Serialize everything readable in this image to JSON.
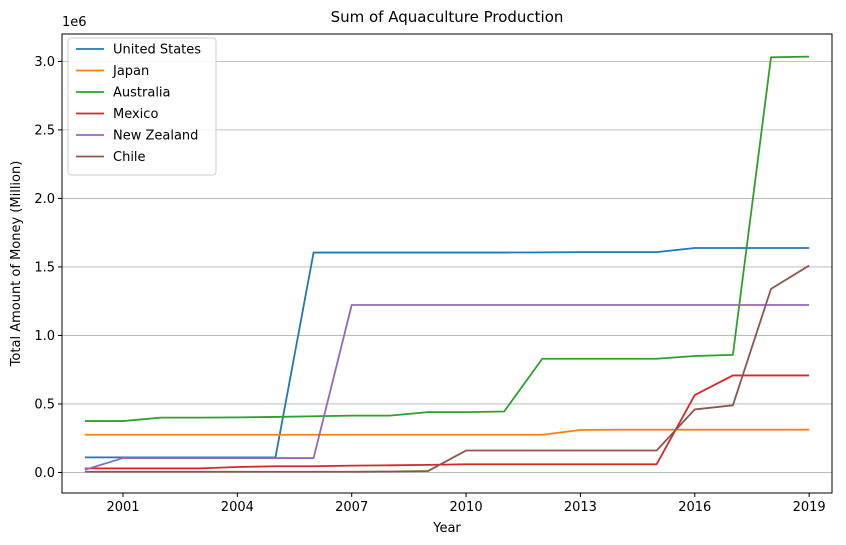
{
  "chart_data": {
    "type": "line",
    "title": "Sum of Aquaculture Production",
    "xlabel": "Year",
    "ylabel": "Total Amount of Money (Million)",
    "y_offset_label": "1e6",
    "xlim": [
      1999.4,
      2019.6
    ],
    "ylim": [
      -0.15,
      3.2
    ],
    "x_ticks": [
      2001,
      2004,
      2007,
      2010,
      2013,
      2016,
      2019
    ],
    "y_ticks": [
      0.0,
      0.5,
      1.0,
      1.5,
      2.0,
      2.5,
      3.0
    ],
    "y_tick_labels": [
      "0.0",
      "0.5",
      "1.0",
      "1.5",
      "2.0",
      "2.5",
      "3.0"
    ],
    "grid": "y-axis",
    "legend_position": "top-left",
    "x": [
      2000,
      2001,
      2002,
      2003,
      2004,
      2005,
      2006,
      2007,
      2008,
      2009,
      2010,
      2011,
      2012,
      2013,
      2014,
      2015,
      2016,
      2017,
      2018,
      2019
    ],
    "series": [
      {
        "name": "United States",
        "color": "#1f77b4",
        "values": [
          0.11,
          0.11,
          0.11,
          0.11,
          0.11,
          0.11,
          1.605,
          1.605,
          1.605,
          1.605,
          1.605,
          1.605,
          1.606,
          1.608,
          1.608,
          1.608,
          1.638,
          1.638,
          1.638,
          1.638
        ]
      },
      {
        "name": "Japan",
        "color": "#ff7f0e",
        "values": [
          0.275,
          0.275,
          0.275,
          0.275,
          0.275,
          0.275,
          0.275,
          0.275,
          0.275,
          0.275,
          0.275,
          0.275,
          0.275,
          0.31,
          0.312,
          0.312,
          0.312,
          0.312,
          0.312,
          0.312
        ]
      },
      {
        "name": "Australia",
        "color": "#2ca02c",
        "values": [
          0.375,
          0.375,
          0.4,
          0.4,
          0.402,
          0.405,
          0.41,
          0.415,
          0.415,
          0.44,
          0.44,
          0.445,
          0.83,
          0.83,
          0.83,
          0.83,
          0.85,
          0.858,
          3.03,
          3.035
        ]
      },
      {
        "name": "Mexico",
        "color": "#d62728",
        "values": [
          0.03,
          0.03,
          0.03,
          0.03,
          0.04,
          0.045,
          0.045,
          0.05,
          0.052,
          0.055,
          0.06,
          0.06,
          0.06,
          0.06,
          0.06,
          0.06,
          0.565,
          0.708,
          0.708,
          0.708
        ]
      },
      {
        "name": "New Zealand",
        "color": "#9467bd",
        "values": [
          0.02,
          0.105,
          0.105,
          0.105,
          0.105,
          0.105,
          0.105,
          1.222,
          1.222,
          1.222,
          1.222,
          1.222,
          1.222,
          1.222,
          1.222,
          1.222,
          1.222,
          1.222,
          1.222,
          1.222
        ]
      },
      {
        "name": "Chile",
        "color": "#8c564b",
        "values": [
          0.005,
          0.005,
          0.005,
          0.005,
          0.005,
          0.005,
          0.005,
          0.005,
          0.007,
          0.01,
          0.16,
          0.16,
          0.16,
          0.16,
          0.16,
          0.16,
          0.46,
          0.49,
          1.34,
          1.51
        ]
      }
    ]
  }
}
